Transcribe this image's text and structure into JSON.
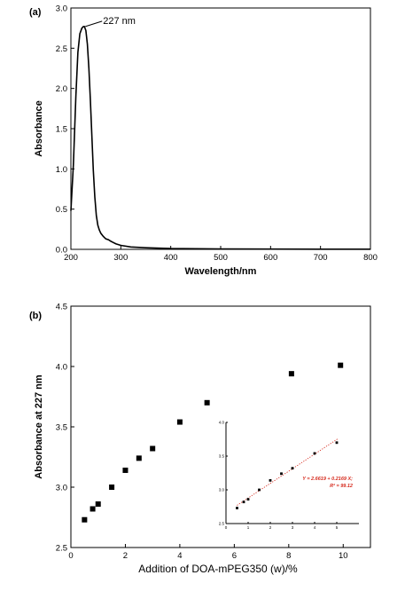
{
  "chart_data": [
    {
      "type": "line",
      "panel_label": "(a)",
      "xlabel": "Wavelength/nm",
      "ylabel": "Absorbance",
      "xlim": [
        200,
        800
      ],
      "ylim": [
        0.0,
        3.0
      ],
      "xticks": [
        200,
        300,
        400,
        500,
        600,
        700,
        800
      ],
      "yticks": [
        0.0,
        0.5,
        1.0,
        1.5,
        2.0,
        2.5,
        3.0
      ],
      "ytick_labels": [
        "0.0",
        "0.5",
        "1.0",
        "1.5",
        "2.0",
        "2.5",
        "3.0"
      ],
      "annotation": "227 nm",
      "annotation_point": [
        227,
        2.77
      ],
      "series": [
        {
          "x": [
            200,
            205,
            210,
            214,
            218,
            222,
            225,
            227,
            230,
            233,
            236,
            239,
            242,
            245,
            248,
            251,
            254,
            257,
            260,
            265,
            270,
            275,
            280,
            290,
            300,
            320,
            350,
            400,
            500,
            600,
            700,
            800
          ],
          "values": [
            0.48,
            1.05,
            1.9,
            2.45,
            2.68,
            2.75,
            2.77,
            2.77,
            2.72,
            2.55,
            2.25,
            1.85,
            1.4,
            0.98,
            0.65,
            0.42,
            0.3,
            0.24,
            0.2,
            0.16,
            0.13,
            0.12,
            0.1,
            0.07,
            0.05,
            0.03,
            0.02,
            0.01,
            0.005,
            0.003,
            0.002,
            0.002
          ]
        }
      ]
    },
    {
      "type": "scatter",
      "panel_label": "(b)",
      "xlabel": "Addition of DOA-mPEG350 (w)/%",
      "ylabel": "Absorbance at 227 nm",
      "xlim": [
        0,
        11
      ],
      "ylim": [
        2.5,
        4.5
      ],
      "xticks": [
        0,
        2,
        4,
        6,
        8,
        10
      ],
      "yticks": [
        2.5,
        3.0,
        3.5,
        4.0,
        4.5
      ],
      "ytick_labels": [
        "2.5",
        "3.0",
        "3.5",
        "4.0",
        "4.5"
      ],
      "series": [
        {
          "x": [
            0.5,
            0.8,
            1.0,
            1.5,
            2.0,
            2.5,
            3.0,
            4.0,
            5.0,
            8.1,
            9.9
          ],
          "values": [
            2.73,
            2.82,
            2.86,
            3.0,
            3.14,
            3.24,
            3.32,
            3.54,
            3.7,
            3.94,
            4.01
          ]
        }
      ],
      "inset": {
        "type": "scatter",
        "xlim": [
          0,
          6
        ],
        "ylim": [
          2.5,
          4.0
        ],
        "xticks": [
          0,
          1,
          2,
          3,
          4,
          5
        ],
        "yticks": [
          2.5,
          3.0,
          3.5,
          4.0
        ],
        "ytick_labels": [
          "2.5",
          "3.0",
          "3.5",
          "4.0"
        ],
        "x": [
          0.5,
          0.8,
          1.0,
          1.5,
          2.0,
          2.5,
          3.0,
          4.0,
          5.0
        ],
        "values": [
          2.73,
          2.82,
          2.86,
          3.0,
          3.14,
          3.24,
          3.32,
          3.54,
          3.7
        ],
        "fit": {
          "intercept": 2.6619,
          "slope": 0.2169
        },
        "equation_line1": "Y = 2.6619 + 0.2169 X;",
        "equation_line2": "R² = 99.12"
      }
    }
  ]
}
